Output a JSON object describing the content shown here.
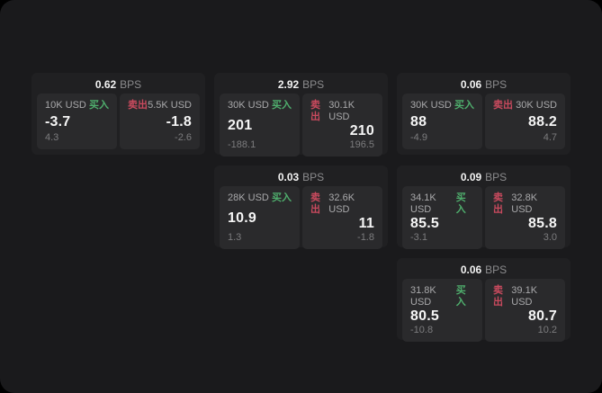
{
  "labels": {
    "bps_unit": "BPS",
    "buy": "买入",
    "sell": "卖出"
  },
  "colors": {
    "background": "#1a1a1c",
    "card": "#202022",
    "panel": "#2a2a2c",
    "buy_accent": "#4fae6d",
    "sell_accent": "#c94a5e",
    "primary_text": "#f5f5f5",
    "muted_text": "#8b8b8d"
  },
  "cards": [
    {
      "bps": "0.62",
      "buy": {
        "amount": "10K USD",
        "price": "-3.7",
        "delta": "4.3"
      },
      "sell": {
        "amount": "5.5K USD",
        "price": "-1.8",
        "delta": "-2.6"
      }
    },
    {
      "bps": "2.92",
      "buy": {
        "amount": "30K USD",
        "price": "201",
        "delta": "-188.1"
      },
      "sell": {
        "amount": "30.1K USD",
        "price": "210",
        "delta": "196.5"
      }
    },
    {
      "bps": "0.06",
      "buy": {
        "amount": "30K USD",
        "price": "88",
        "delta": "-4.9"
      },
      "sell": {
        "amount": "30K USD",
        "price": "88.2",
        "delta": "4.7"
      }
    },
    {
      "bps": "0.03",
      "buy": {
        "amount": "28K USD",
        "price": "10.9",
        "delta": "1.3"
      },
      "sell": {
        "amount": "32.6K USD",
        "price": "11",
        "delta": "-1.8"
      }
    },
    {
      "bps": "0.09",
      "buy": {
        "amount": "34.1K USD",
        "price": "85.5",
        "delta": "-3.1"
      },
      "sell": {
        "amount": "32.8K USD",
        "price": "85.8",
        "delta": "3.0"
      }
    },
    {
      "bps": "0.06",
      "buy": {
        "amount": "31.8K USD",
        "price": "80.5",
        "delta": "-10.8"
      },
      "sell": {
        "amount": "39.1K USD",
        "price": "80.7",
        "delta": "10.2"
      }
    }
  ],
  "grid_positions": [
    {
      "row": 1,
      "col": 1
    },
    {
      "row": 1,
      "col": 2
    },
    {
      "row": 1,
      "col": 3
    },
    {
      "row": 2,
      "col": 2
    },
    {
      "row": 2,
      "col": 3
    },
    {
      "row": 3,
      "col": 3
    }
  ]
}
